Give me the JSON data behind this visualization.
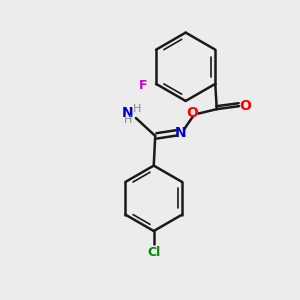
{
  "background_color": "#ececec",
  "bond_color": "#1a1a1a",
  "atom_colors": {
    "F": "#cc00cc",
    "O": "#ff0000",
    "N": "#0000cc",
    "Cl": "#008800",
    "H": "#888888"
  },
  "lw": 1.8,
  "lw_inner": 1.2
}
